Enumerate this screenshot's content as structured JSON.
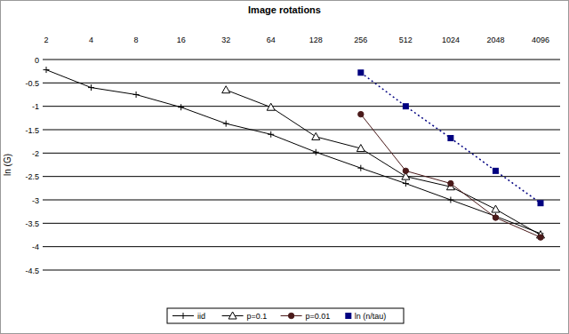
{
  "chart_data": {
    "type": "line",
    "title": "Image rotations",
    "y_label": "ln (G)",
    "categories": [
      "2",
      "4",
      "8",
      "16",
      "32",
      "64",
      "128",
      "256",
      "512",
      "1024",
      "2048",
      "4096"
    ],
    "series": [
      {
        "name": "iid",
        "color": "#000000",
        "marker": "plus",
        "line_style": "solid",
        "values": [
          -0.22,
          -0.6,
          -0.75,
          -1.02,
          -1.37,
          -1.6,
          -1.98,
          -2.32,
          -2.65,
          -3.0,
          -3.35,
          -3.72
        ]
      },
      {
        "name": "p=0.1",
        "color": "#000000",
        "marker": "triangle",
        "line_style": "solid",
        "values": [
          null,
          null,
          null,
          null,
          -0.65,
          -1.02,
          -1.65,
          -1.9,
          -2.5,
          -2.72,
          -3.2,
          -3.75
        ]
      },
      {
        "name": "p=0.01",
        "color": "#4a1a1a",
        "marker": "circle",
        "line_style": "solid",
        "values": [
          null,
          null,
          null,
          null,
          null,
          null,
          null,
          -1.17,
          -2.38,
          -2.65,
          -3.38,
          -3.8
        ]
      },
      {
        "name": "ln (n/tau)",
        "color": "#000080",
        "marker": "square",
        "line_style": "dotted",
        "values": [
          null,
          null,
          null,
          null,
          null,
          null,
          null,
          -0.28,
          -1.0,
          -1.68,
          -2.38,
          -3.07
        ]
      }
    ],
    "ylim": [
      -4.5,
      0
    ],
    "yticks": [
      0,
      -0.5,
      -1,
      -1.5,
      -2,
      -2.5,
      -3,
      -3.5,
      -4,
      -4.5
    ],
    "grid": true,
    "legend": "bottom"
  }
}
